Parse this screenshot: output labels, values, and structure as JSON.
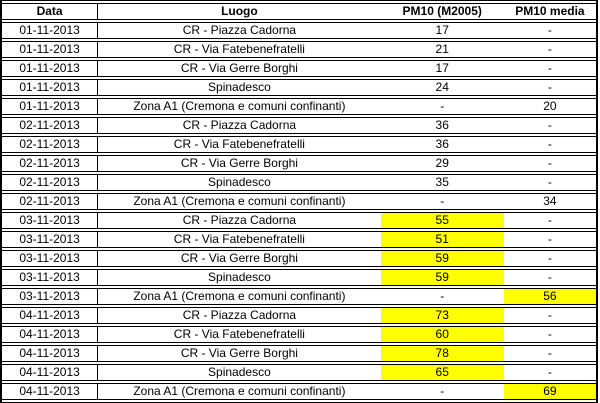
{
  "colors": {
    "highlight": "#FFFF00",
    "border": "#000000",
    "text": "#000000",
    "background": "#FFFFFF"
  },
  "chart_data": {
    "type": "table",
    "title": "",
    "columns": [
      "Data",
      "Luogo",
      "PM10 (M2005)",
      "PM10 media"
    ],
    "rows": [
      {
        "data": "01-11-2013",
        "luogo": "CR - Piazza Cadorna",
        "pm10": "17",
        "media": "-",
        "pm10_hl": false,
        "media_hl": false
      },
      {
        "data": "01-11-2013",
        "luogo": "CR - Via Fatebenefratelli",
        "pm10": "21",
        "media": "-",
        "pm10_hl": false,
        "media_hl": false
      },
      {
        "data": "01-11-2013",
        "luogo": "CR - Via Gerre Borghi",
        "pm10": "17",
        "media": "-",
        "pm10_hl": false,
        "media_hl": false
      },
      {
        "data": "01-11-2013",
        "luogo": "Spinadesco",
        "pm10": "24",
        "media": "-",
        "pm10_hl": false,
        "media_hl": false
      },
      {
        "data": "01-11-2013",
        "luogo": "Zona A1 (Cremona e comuni confinanti)",
        "pm10": "-",
        "media": "20",
        "pm10_hl": false,
        "media_hl": false
      },
      {
        "data": "02-11-2013",
        "luogo": "CR - Piazza Cadorna",
        "pm10": "36",
        "media": "-",
        "pm10_hl": false,
        "media_hl": false
      },
      {
        "data": "02-11-2013",
        "luogo": "CR - Via Fatebenefratelli",
        "pm10": "36",
        "media": "-",
        "pm10_hl": false,
        "media_hl": false
      },
      {
        "data": "02-11-2013",
        "luogo": "CR - Via Gerre Borghi",
        "pm10": "29",
        "media": "-",
        "pm10_hl": false,
        "media_hl": false
      },
      {
        "data": "02-11-2013",
        "luogo": "Spinadesco",
        "pm10": "35",
        "media": "-",
        "pm10_hl": false,
        "media_hl": false
      },
      {
        "data": "02-11-2013",
        "luogo": "Zona A1 (Cremona e comuni confinanti)",
        "pm10": "-",
        "media": "34",
        "pm10_hl": false,
        "media_hl": false
      },
      {
        "data": "03-11-2013",
        "luogo": "CR - Piazza Cadorna",
        "pm10": "55",
        "media": "-",
        "pm10_hl": true,
        "media_hl": false
      },
      {
        "data": "03-11-2013",
        "luogo": "CR - Via Fatebenefratelli",
        "pm10": "51",
        "media": "-",
        "pm10_hl": true,
        "media_hl": false
      },
      {
        "data": "03-11-2013",
        "luogo": "CR - Via Gerre Borghi",
        "pm10": "59",
        "media": "-",
        "pm10_hl": true,
        "media_hl": false
      },
      {
        "data": "03-11-2013",
        "luogo": "Spinadesco",
        "pm10": "59",
        "media": "-",
        "pm10_hl": true,
        "media_hl": false
      },
      {
        "data": "03-11-2013",
        "luogo": "Zona A1 (Cremona e comuni confinanti)",
        "pm10": "-",
        "media": "56",
        "pm10_hl": false,
        "media_hl": true
      },
      {
        "data": "04-11-2013",
        "luogo": "CR - Piazza Cadorna",
        "pm10": "73",
        "media": "-",
        "pm10_hl": true,
        "media_hl": false
      },
      {
        "data": "04-11-2013",
        "luogo": "CR - Via Fatebenefratelli",
        "pm10": "60",
        "media": "-",
        "pm10_hl": true,
        "media_hl": false
      },
      {
        "data": "04-11-2013",
        "luogo": "CR - Via Gerre Borghi",
        "pm10": "78",
        "media": "-",
        "pm10_hl": true,
        "media_hl": false
      },
      {
        "data": "04-11-2013",
        "luogo": "Spinadesco",
        "pm10": "65",
        "media": "-",
        "pm10_hl": true,
        "media_hl": false
      },
      {
        "data": "04-11-2013",
        "luogo": "Zona A1 (Cremona e comuni confinanti)",
        "pm10": "-",
        "media": "69",
        "pm10_hl": false,
        "media_hl": true
      }
    ]
  }
}
